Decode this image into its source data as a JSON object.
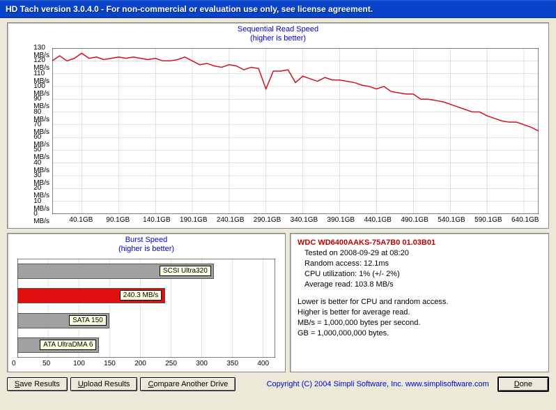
{
  "window": {
    "title": "HD Tach version 3.0.4.0  -  For non-commercial or evaluation use only, see license agreement."
  },
  "seq_chart": {
    "title": "Sequential Read Speed",
    "subtitle": "(higher is better)",
    "type": "line",
    "y_unit": "MB/s",
    "ylim": [
      0,
      130
    ],
    "ytick_step": 10,
    "x_unit": "GB",
    "xticks": [
      40.1,
      90.1,
      140.1,
      190.1,
      240.1,
      290.1,
      340.1,
      390.1,
      440.1,
      490.1,
      540.1,
      590.1,
      640.1
    ],
    "xlim": [
      0,
      660
    ],
    "line_color": "#d01020",
    "grid_color": "#c0c0c0",
    "line_width": 1.5,
    "data_x": [
      0,
      10,
      20,
      30,
      40,
      50,
      60,
      70,
      80,
      90,
      100,
      110,
      120,
      130,
      140,
      150,
      160,
      170,
      180,
      190,
      200,
      210,
      220,
      230,
      240,
      250,
      260,
      270,
      280,
      290,
      300,
      310,
      320,
      330,
      340,
      350,
      360,
      370,
      380,
      390,
      400,
      410,
      420,
      430,
      440,
      450,
      460,
      470,
      480,
      490,
      500,
      510,
      520,
      530,
      540,
      550,
      560,
      570,
      580,
      590,
      600,
      610,
      620,
      630,
      640,
      650,
      660
    ],
    "data_y": [
      120,
      124,
      120,
      122,
      126,
      122,
      123,
      121,
      122,
      123,
      122,
      123,
      122,
      121,
      122,
      120,
      120,
      121,
      123,
      120,
      117,
      118,
      116,
      115,
      117,
      116,
      113,
      115,
      114,
      98,
      112,
      112,
      113,
      103,
      108,
      106,
      104,
      107,
      105,
      105,
      104,
      103,
      101,
      100,
      98,
      100,
      96,
      95,
      94,
      94,
      90,
      90,
      89,
      88,
      86,
      84,
      82,
      80,
      80,
      77,
      75,
      73,
      72,
      72,
      70,
      68,
      65
    ]
  },
  "burst_chart": {
    "title": "Burst Speed",
    "subtitle": "(higher is better)",
    "type": "bar",
    "xlim": [
      0,
      420
    ],
    "xtick_step": 50,
    "grid_color": "#c0c0c0",
    "bars": [
      {
        "value": 320,
        "label": "SCSI Ultra320",
        "color": "#a0a0a0"
      },
      {
        "value": 240.3,
        "label": "240.3 MB/s",
        "color": "#e01010"
      },
      {
        "value": 150,
        "label": "SATA 150",
        "color": "#a0a0a0"
      },
      {
        "value": 133,
        "label": "ATA UltraDMA 6",
        "color": "#a0a0a0"
      }
    ],
    "tooltip_bg": "#ffffe1"
  },
  "info": {
    "device": "WDC WD6400AAKS-75A7B0 01.03B01",
    "tested": "Tested on 2008-09-29 at 08:20",
    "random": "Random access: 12.1ms",
    "cpu": "CPU utilization: 1% (+/- 2%)",
    "avg_read": "Average read: 103.8 MB/s",
    "note1": "Lower is better for CPU and random access.",
    "note2": "Higher is better for average read.",
    "note3": "MB/s = 1,000,000 bytes per second.",
    "note4": "GB = 1,000,000,000 bytes."
  },
  "buttons": {
    "save": "Save Results",
    "upload": "Upload Results",
    "compare": "Compare Another Drive",
    "done": "Done"
  },
  "copyright": "Copyright (C) 2004 Simpli Software, Inc. www.simplisoftware.com"
}
